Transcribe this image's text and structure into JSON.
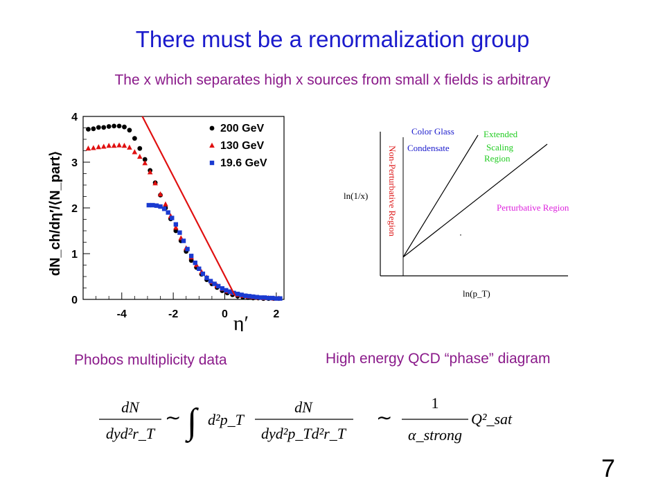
{
  "slide": {
    "title": "There must be a renormalization group",
    "subtitle": "The x which separates high x sources from small x fields is arbitrary",
    "number": "7"
  },
  "left_caption": "Phobos multiplicity data",
  "right_caption": "High energy QCD “phase” diagram",
  "chart_data": [
    {
      "type": "scatter",
      "ylabel": "dN_ch/dη′/⟨N_part⟩",
      "xlabel": "η′",
      "xlim": [
        -5.5,
        2.3
      ],
      "ylim": [
        0,
        4
      ],
      "x_ticks": [
        "-4",
        "-2",
        "0",
        "2"
      ],
      "y_ticks": [
        "0",
        "1",
        "2",
        "3",
        "4"
      ],
      "legend_position": "top-right",
      "colors": {
        "200 GeV": "#000000",
        "130 GeV": "#e01010",
        "19.6 GeV": "#1a3ad0",
        "fit": "#e01010"
      },
      "series": [
        {
          "name": "200 GeV",
          "marker": "circle",
          "x": [
            -5.3,
            -5.1,
            -4.9,
            -4.7,
            -4.5,
            -4.3,
            -4.1,
            -3.9,
            -3.7,
            -3.5,
            -3.3,
            -3.1,
            -2.9,
            -2.7,
            -2.5,
            -2.3,
            -2.1,
            -1.9,
            -1.7,
            -1.5,
            -1.3,
            -1.1,
            -0.9,
            -0.7,
            -0.5,
            -0.3,
            -0.1,
            0.1,
            0.3,
            0.5,
            0.7,
            0.9,
            1.1,
            1.3,
            1.5,
            1.7,
            1.9,
            2.1
          ],
          "y": [
            3.72,
            3.73,
            3.76,
            3.76,
            3.78,
            3.79,
            3.79,
            3.77,
            3.7,
            3.52,
            3.3,
            3.06,
            2.82,
            2.55,
            2.28,
            2.0,
            1.76,
            1.5,
            1.28,
            1.05,
            0.85,
            0.7,
            0.55,
            0.43,
            0.34,
            0.26,
            0.19,
            0.14,
            0.1,
            0.07,
            0.05,
            0.04,
            0.03,
            0.03,
            0.02,
            0.02,
            0.02,
            0.02
          ]
        },
        {
          "name": "130 GeV",
          "marker": "triangle",
          "x": [
            -5.3,
            -5.1,
            -4.9,
            -4.7,
            -4.5,
            -4.3,
            -4.1,
            -3.9,
            -3.7,
            -3.5,
            -3.3,
            -3.1,
            -2.9,
            -2.7,
            -2.5,
            -2.3,
            -2.1,
            -1.9,
            -1.7,
            -1.5,
            -1.3,
            -1.1,
            -0.9,
            -0.7,
            -0.5,
            -0.3,
            -0.1,
            0.1,
            0.3,
            0.5,
            0.7,
            0.9,
            1.1,
            1.3,
            1.5,
            1.7,
            1.9,
            2.1
          ],
          "y": [
            3.3,
            3.31,
            3.33,
            3.34,
            3.36,
            3.36,
            3.37,
            3.36,
            3.32,
            3.22,
            3.12,
            2.98,
            2.78,
            2.54,
            2.3,
            2.08,
            1.82,
            1.57,
            1.34,
            1.12,
            0.92,
            0.75,
            0.6,
            0.48,
            0.38,
            0.3,
            0.23,
            0.18,
            0.14,
            0.1,
            0.08,
            0.06,
            0.05,
            0.04,
            0.03,
            0.03,
            0.02,
            0.02
          ]
        },
        {
          "name": "19.6 GeV",
          "marker": "square",
          "x": [
            -2.95,
            -2.8,
            -2.65,
            -2.5,
            -2.35,
            -2.2,
            -2.05,
            -1.9,
            -1.75,
            -1.6,
            -1.45,
            -1.3,
            -1.15,
            -1.0,
            -0.85,
            -0.7,
            -0.55,
            -0.4,
            -0.25,
            -0.1,
            0.05,
            0.2,
            0.35,
            0.5,
            0.65,
            0.8,
            0.95,
            1.1,
            1.25,
            1.4,
            1.55,
            1.7,
            1.85,
            2.0,
            2.15
          ],
          "y": [
            2.06,
            2.06,
            2.05,
            2.03,
            1.98,
            1.9,
            1.78,
            1.64,
            1.46,
            1.28,
            1.1,
            0.95,
            0.8,
            0.67,
            0.56,
            0.47,
            0.4,
            0.34,
            0.29,
            0.24,
            0.2,
            0.17,
            0.14,
            0.12,
            0.1,
            0.08,
            0.07,
            0.06,
            0.05,
            0.04,
            0.04,
            0.03,
            0.03,
            0.02,
            0.02
          ]
        }
      ],
      "fit_line": {
        "name": "fit",
        "x": [
          -3.2,
          0.4
        ],
        "y": [
          4.0,
          0.08
        ]
      }
    },
    {
      "type": "diagram",
      "ylabel": "ln(1/x)",
      "xlabel": "ln(p_T)",
      "regions": {
        "cgc_line1": "Color Glass",
        "cgc_line2": "Condensate",
        "ext_line1": "Extended",
        "ext_line2": "Scaling",
        "ext_line3": "Region",
        "perturbative": "Perturbative Region",
        "nonperturbative": "Non-Perturbative Region"
      },
      "colors": {
        "cgc": "#1a1acc",
        "extended": "#22cc22",
        "perturbative": "#dd22dd",
        "nonperturbative": "#dd1a1a"
      }
    }
  ],
  "formula": {
    "lhs_num": "dN",
    "lhs_den": "dyd²r_T",
    "sim": "∼",
    "int": "∫",
    "measure": "d²p_T",
    "rhs_num": "dN",
    "rhs_den": "dyd²p_Td²r_T",
    "sim2": "∼",
    "frac_num": "1",
    "frac_den": "α_strong",
    "q": "Q²_sat"
  }
}
